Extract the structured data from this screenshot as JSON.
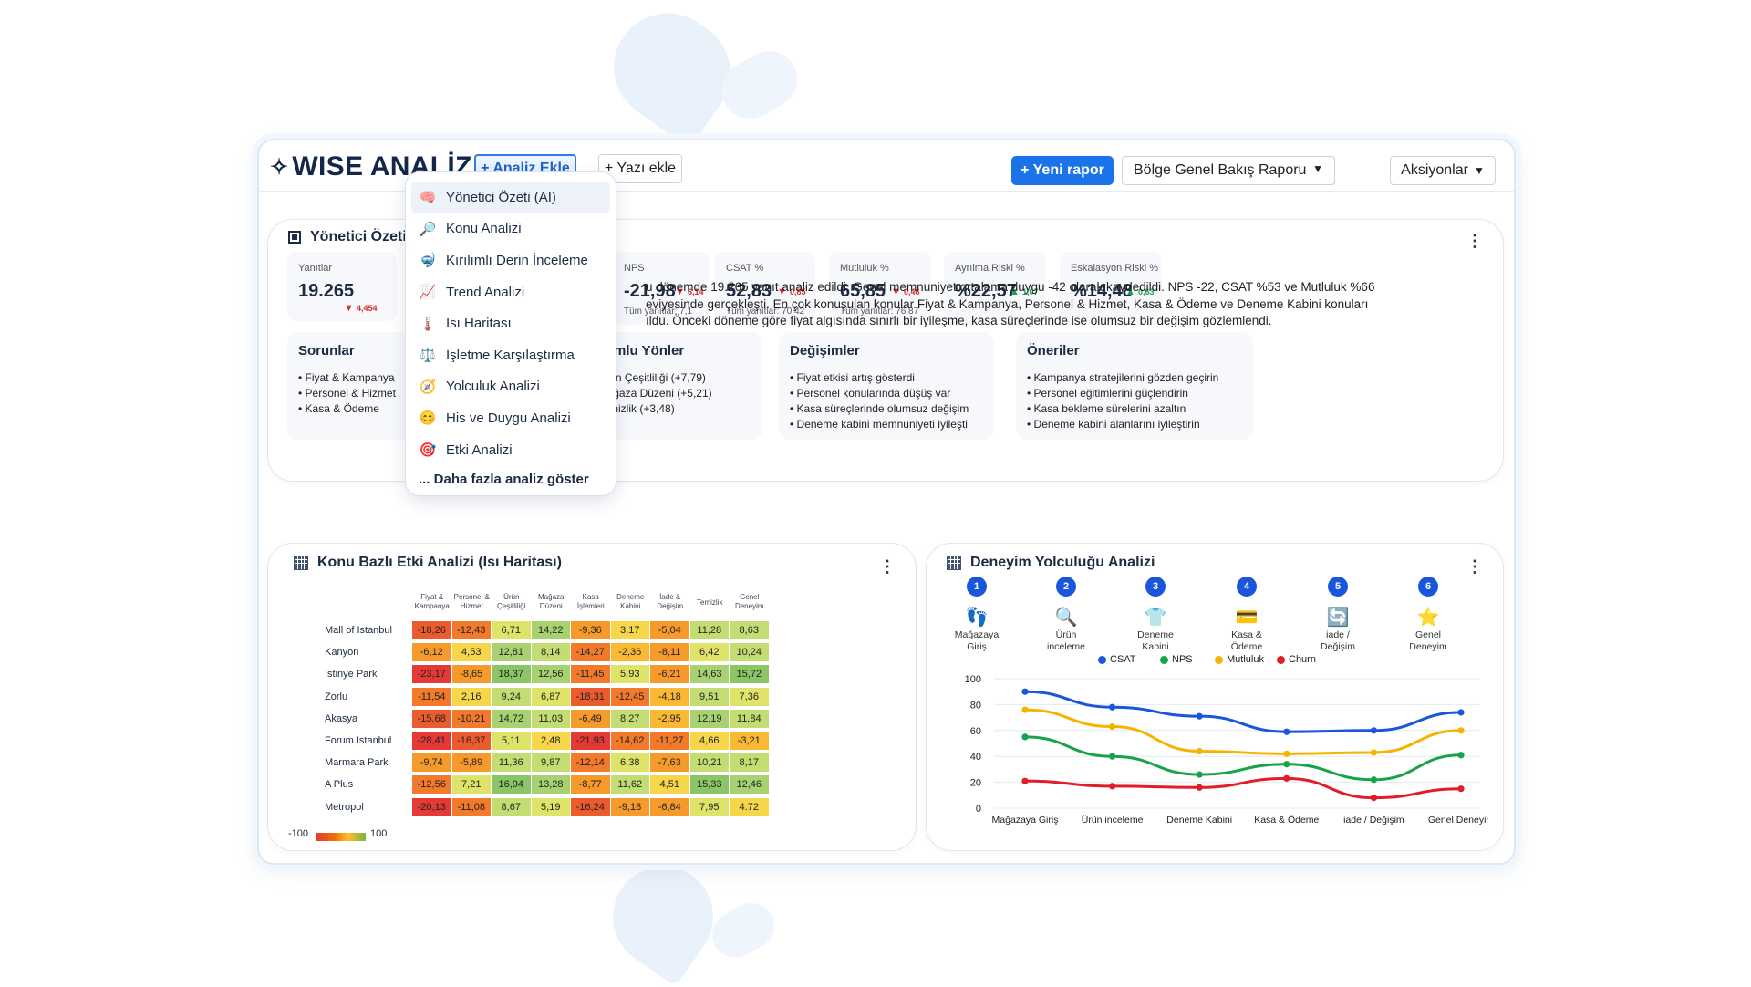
{
  "app": {
    "logo": "WISE ANALİZ",
    "add_analysis_btn": "+ Analiz Ekle",
    "add_text_btn": "+ Yazı ekle",
    "new_report_btn": "+ Yeni rapor",
    "report_select": "Bölge Genel Bakış Raporu",
    "actions_btn": "Aksiyonlar"
  },
  "dropdown": {
    "items": [
      {
        "label": "Yönetici Özeti (AI)",
        "icon": "brain-icon",
        "glyph": "🧠"
      },
      {
        "label": "Konu Analizi",
        "icon": "magnifier-icon",
        "glyph": "🔎"
      },
      {
        "label": "Kırılımlı Derin İnceleme",
        "icon": "drill-icon",
        "glyph": "🤿"
      },
      {
        "label": "Trend Analizi",
        "icon": "trend-icon",
        "glyph": "📈"
      },
      {
        "label": "Isı Haritası",
        "icon": "thermometer-icon",
        "glyph": "🌡️"
      },
      {
        "label": "İşletme Karşılaştırma",
        "icon": "scale-icon",
        "glyph": "⚖️"
      },
      {
        "label": "Yolculuk Analizi",
        "icon": "compass-icon",
        "glyph": "🧭"
      },
      {
        "label": "His ve Duygu Analizi",
        "icon": "smiley-icon",
        "glyph": "😊"
      },
      {
        "label": "Etki Analizi",
        "icon": "target-icon",
        "glyph": "🎯"
      }
    ],
    "more": "... Daha fazla analiz göster"
  },
  "summary": {
    "title": "Yönetici Özeti (AI",
    "kpis": [
      {
        "label": "Yanıtlar",
        "value": "19.265",
        "delta": "4,454",
        "dir": "down",
        "sub": ""
      },
      {
        "label": "NPS",
        "value": "-21,98",
        "delta": "6,14",
        "dir": "down",
        "sub": "Tüm yanıtlar: 7,1"
      },
      {
        "label": "CSAT %",
        "value": "52,83",
        "delta": "0,85",
        "dir": "down",
        "sub": "Tüm yanıtlar: 70,42"
      },
      {
        "label": "Mutluluk %",
        "value": "65,85",
        "delta": "0,46",
        "dir": "down",
        "sub": "Tüm yanıtlar: 76,87"
      },
      {
        "label": "Ayrılma Riski %",
        "value": "%22,57",
        "delta": "1,07",
        "dir": "up",
        "sub": ""
      },
      {
        "label": "Eskalasyon Riski %",
        "value": "%14,48",
        "delta": "0,63",
        "dir": "up",
        "sub": ""
      }
    ],
    "text_lines": [
      "u dönemde 19.265 yanıt analiz edildi. Genel memnuniyet ortalama duygu -42 olarak kaydedildi. NPS -22, CSAT %53 ve Mutluluk %66",
      "eviyesinde gerçekleşti. En çok konuşulan konular Fiyat & Kampanya, Personel & Hizmet, Kasa & Ödeme ve Deneme Kabini konuları",
      "ıldu. Önceki döneme göre fiyat algısında sınırlı bir iyileşme, kasa süreçlerinde ise olumsuz bir değişim gözlemlendi."
    ],
    "panels": [
      {
        "title": "Sorunlar",
        "items": [
          "Fiyat & Kampanya",
          "Personel & Hizmet",
          "Kasa & Ödeme"
        ]
      },
      {
        "title": "Olumlu Yönler",
        "items": [
          "Ürün Çeşitliliği (+7,79)",
          "Mağaza Düzeni (+5,21)",
          "Temizlik (+3,48)"
        ]
      },
      {
        "title": "Değişimler",
        "items": [
          "Fiyat etkisi artış gösterdi",
          "Personel konularında düşüş var",
          "Kasa süreçlerinde olumsuz değişim",
          "Deneme kabini memnuniyeti iyileşti"
        ]
      },
      {
        "title": "Öneriler",
        "items": [
          "Kampanya stratejilerini gözden geçirin",
          "Personel eğitimlerini güçlendirin",
          "Kasa bekleme sürelerini azaltın",
          "Deneme kabini alanlarını iyileştirin"
        ]
      }
    ]
  },
  "heatmap": {
    "title": "Konu Bazlı Etki Analizi (Isı Haritası)",
    "columns": [
      [
        "Fiyat &",
        "Kampanya"
      ],
      [
        "Personel &",
        "Hizmet"
      ],
      [
        "Ürün",
        "Çeşitliliği"
      ],
      [
        "Mağaza",
        "Düzeni"
      ],
      [
        "Kasa",
        "İşlemleri"
      ],
      [
        "Deneme",
        "Kabini"
      ],
      [
        "İade &",
        "Değişim"
      ],
      [
        "Temizlik",
        ""
      ],
      [
        "Genel",
        "Deneyim"
      ]
    ],
    "rows": [
      {
        "name": "Mall of Istanbul",
        "values": [
          "-18,26",
          "-12,43",
          "6,71",
          "14,22",
          "-9,36",
          "3,17",
          "-5,04",
          "11,28",
          "8,63"
        ]
      },
      {
        "name": "Kanyon",
        "values": [
          "-6,12",
          "4,53",
          "12,81",
          "8,14",
          "-14,27",
          "-2,36",
          "-8,11",
          "6,42",
          "10,24"
        ]
      },
      {
        "name": "İstinye Park",
        "values": [
          "-23,17",
          "-8,65",
          "18,37",
          "12,56",
          "-11,45",
          "5,93",
          "-6,21",
          "14,63",
          "15,72"
        ]
      },
      {
        "name": "Zorlu",
        "values": [
          "-11,54",
          "2,16",
          "9,24",
          "6,87",
          "-18,31",
          "-12,45",
          "-4,18",
          "9,51",
          "7,36"
        ]
      },
      {
        "name": "Akasya",
        "values": [
          "-15,68",
          "-10,21",
          "14,72",
          "11,03",
          "-6,49",
          "8,27",
          "-2,95",
          "12,19",
          "11,84"
        ]
      },
      {
        "name": "Forum Istanbul",
        "values": [
          "-28,41",
          "-16,37",
          "5,11",
          "2,48",
          "-21,93",
          "-14,62",
          "-11,27",
          "4,66",
          "-3,21"
        ]
      },
      {
        "name": "Marmara Park",
        "values": [
          "-9,74",
          "-5,89",
          "11,36",
          "9,87",
          "-12,14",
          "6,38",
          "-7,63",
          "10,21",
          "8,17"
        ]
      },
      {
        "name": "A Plus",
        "values": [
          "-12,56",
          "7,21",
          "16,94",
          "13,28",
          "-8,77",
          "11,62",
          "4,51",
          "15,33",
          "12,46"
        ]
      },
      {
        "name": "Metropol",
        "values": [
          "-20,13",
          "-11,08",
          "8,67",
          "5,19",
          "-16,24",
          "-9,18",
          "-6,84",
          "7,95",
          "4.72"
        ]
      }
    ],
    "legend_min": "-100",
    "legend_max": "100"
  },
  "journey": {
    "title": "Deneyim Yolculuğu Analizi",
    "steps": [
      {
        "num": "1",
        "label": [
          "Mağazaya",
          "Giriş"
        ],
        "icon": "footprints-icon",
        "glyph": "👣"
      },
      {
        "num": "2",
        "label": [
          "Ürün",
          "inceleme"
        ],
        "icon": "magnifier-icon",
        "glyph": "🔍"
      },
      {
        "num": "3",
        "label": [
          "Deneme",
          "Kabini"
        ],
        "icon": "shirt-icon",
        "glyph": "👕"
      },
      {
        "num": "4",
        "label": [
          "Kasa &",
          "Ödeme"
        ],
        "icon": "card-icon",
        "glyph": "💳"
      },
      {
        "num": "5",
        "label": [
          "iade /",
          "Değişim"
        ],
        "icon": "exchange-icon",
        "glyph": "🔄"
      },
      {
        "num": "6",
        "label": [
          "Genel",
          "Deneyim"
        ],
        "icon": "star-icon",
        "glyph": "⭐"
      }
    ]
  },
  "chart_data": {
    "type": "line",
    "categories": [
      "Mağazaya Giriş",
      "Ürün inceleme",
      "Deneme Kabini",
      "Kasa & Ödeme",
      "iade / Değişim",
      "Genel Deneyim"
    ],
    "series": [
      {
        "name": "CSAT",
        "color": "#1a56db",
        "values": [
          90,
          78,
          71,
          59,
          60,
          74
        ]
      },
      {
        "name": "NPS",
        "color": "#16a34a",
        "values": [
          55,
          40,
          26,
          34,
          22,
          41
        ]
      },
      {
        "name": "Mutluluk",
        "color": "#f5b400",
        "values": [
          76,
          63,
          44,
          42,
          43,
          60
        ]
      },
      {
        "name": "Churn",
        "color": "#e11d2a",
        "values": [
          21,
          17,
          16,
          23,
          8,
          15
        ]
      }
    ],
    "ylim": [
      0,
      100
    ],
    "yticks": [
      "0",
      "20",
      "40",
      "60",
      "80",
      "100"
    ],
    "grid": true,
    "legend": "top"
  }
}
